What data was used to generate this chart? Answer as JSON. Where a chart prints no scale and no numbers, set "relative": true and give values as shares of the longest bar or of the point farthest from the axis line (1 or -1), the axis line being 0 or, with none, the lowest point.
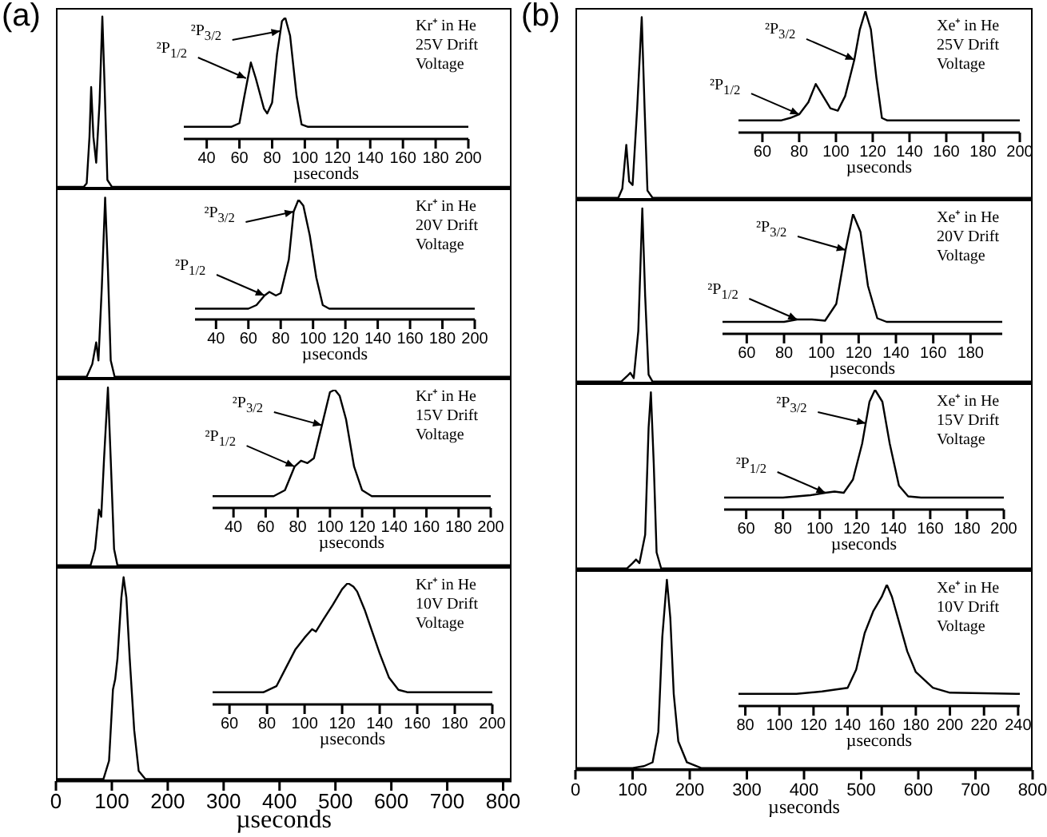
{
  "chart_data": [
    {
      "type": "line",
      "relative": true,
      "title": "(a)",
      "color": "#000000",
      "x": [
        0,
        50,
        55,
        60,
        63,
        67,
        72,
        78,
        83,
        87,
        92,
        100,
        815
      ],
      "values": [
        0.01,
        0.01,
        0.03,
        0.3,
        0.59,
        0.3,
        0.15,
        0.5,
        1,
        0.6,
        0.05,
        0.01,
        0.01
      ],
      "xlim": [
        0,
        815
      ],
      "tick_labels": false,
      "annotations": [
        "Kr⁺ in He\n25V Drift\nVoltage"
      ]
    },
    {
      "type": "line",
      "relative": true,
      "color": "#000000",
      "x": [
        26,
        55,
        60,
        63,
        67,
        70,
        75,
        77,
        80,
        83,
        86,
        88,
        91,
        95,
        98,
        102,
        200
      ],
      "values": [
        0.1,
        0.1,
        0.13,
        0.35,
        0.63,
        0.5,
        0.25,
        0.21,
        0.3,
        0.7,
        0.97,
        1,
        0.85,
        0.35,
        0.12,
        0.1,
        0.1
      ],
      "xlim": [
        26,
        200
      ],
      "xticks": [
        40,
        60,
        80,
        100,
        120,
        140,
        160,
        180,
        200
      ],
      "tick_labels": "x",
      "xlabel": "µseconds",
      "annotations": [
        {
          "text": "²P$_{1/2}$",
          "x": 64,
          "y": 0.5
        },
        {
          "text": "²P$_{3/2}$",
          "x": 85,
          "y": 0.89
        }
      ]
    },
    {
      "type": "line",
      "relative": true,
      "color": "#000000",
      "x": [
        0,
        55,
        65,
        72,
        76,
        82,
        88,
        93,
        98,
        105,
        815
      ],
      "values": [
        0.01,
        0.01,
        0.08,
        0.2,
        0.1,
        0.5,
        1,
        0.6,
        0.1,
        0.01,
        0.01
      ],
      "xlim": [
        0,
        815
      ],
      "tick_labels": false,
      "annotations": [
        "Kr⁺ in He\n20V Drift\nVoltage"
      ]
    },
    {
      "type": "line",
      "relative": true,
      "color": "#000000",
      "x": [
        27,
        60,
        65,
        70,
        73,
        77,
        80,
        85,
        88,
        91,
        94,
        98,
        102,
        106,
        110,
        200
      ],
      "values": [
        0.09,
        0.09,
        0.12,
        0.2,
        0.23,
        0.2,
        0.22,
        0.5,
        0.9,
        1,
        0.95,
        0.7,
        0.35,
        0.12,
        0.09,
        0.09
      ],
      "xlim": [
        27,
        200
      ],
      "xticks": [
        40,
        60,
        80,
        100,
        120,
        140,
        160,
        180,
        200
      ],
      "tick_labels": "x",
      "xlabel": "µseconds",
      "annotations": [
        {
          "text": "²P$_{1/2}$",
          "x": 70,
          "y": 0.2
        },
        {
          "text": "²P$_{3/2}$",
          "x": 88,
          "y": 0.9
        }
      ]
    },
    {
      "type": "line",
      "relative": true,
      "color": "#000000",
      "x": [
        0,
        62,
        70,
        77,
        81,
        86,
        93,
        98,
        104,
        110,
        815
      ],
      "values": [
        0.01,
        0.01,
        0.1,
        0.32,
        0.28,
        0.6,
        1,
        0.6,
        0.1,
        0.01,
        0.01
      ],
      "xlim": [
        0,
        815
      ],
      "tick_labels": false,
      "annotations": [
        "Kr⁺ in He\n15V Drift\nVoltage"
      ]
    },
    {
      "type": "line",
      "relative": true,
      "color": "#000000",
      "x": [
        27,
        65,
        72,
        78,
        82,
        86,
        90,
        95,
        100,
        103,
        106,
        110,
        115,
        120,
        126,
        200
      ],
      "values": [
        0.1,
        0.1,
        0.15,
        0.35,
        0.4,
        0.38,
        0.42,
        0.7,
        0.98,
        1,
        0.95,
        0.75,
        0.35,
        0.15,
        0.1,
        0.1
      ],
      "xlim": [
        27,
        200
      ],
      "xticks": [
        40,
        60,
        80,
        100,
        120,
        140,
        160,
        180,
        200
      ],
      "tick_labels": "x",
      "xlabel": "µseconds",
      "annotations": [
        {
          "text": "²P$_{1/2}$",
          "x": 78,
          "y": 0.35
        },
        {
          "text": "²P$_{3/2}$",
          "x": 95,
          "y": 0.7
        }
      ]
    },
    {
      "type": "line",
      "relative": true,
      "color": "#000000",
      "x": [
        0,
        85,
        95,
        102,
        106,
        110,
        117,
        121,
        126,
        132,
        140,
        148,
        160,
        815
      ],
      "values": [
        0.01,
        0.01,
        0.1,
        0.45,
        0.5,
        0.6,
        0.9,
        1,
        0.9,
        0.6,
        0.25,
        0.05,
        0.01,
        0.01
      ],
      "xlim": [
        0,
        815
      ],
      "xticks": [
        0,
        100,
        200,
        300,
        400,
        500,
        600,
        700,
        800
      ],
      "tick_labels": "x",
      "xlabel": "µseconds",
      "annotations": [
        "Kr⁺ in He\n10V Drift\nVoltage"
      ]
    },
    {
      "type": "line",
      "relative": true,
      "color": "#000000",
      "x": [
        51,
        78,
        85,
        90,
        95,
        100,
        104,
        106,
        110,
        115,
        120,
        123,
        126,
        128,
        132,
        136,
        140,
        145,
        150,
        155,
        200
      ],
      "values": [
        0.1,
        0.1,
        0.15,
        0.3,
        0.45,
        0.55,
        0.62,
        0.6,
        0.7,
        0.82,
        0.95,
        1,
        0.97,
        0.93,
        0.78,
        0.6,
        0.42,
        0.22,
        0.12,
        0.1,
        0.1
      ],
      "xlim": [
        51,
        200
      ],
      "xticks": [
        60,
        80,
        100,
        120,
        140,
        160,
        180,
        200
      ],
      "tick_labels": "x",
      "xlabel": "µseconds"
    },
    {
      "type": "line",
      "relative": true,
      "title": "(b)",
      "color": "#000000",
      "x": [
        0,
        75,
        82,
        89,
        94,
        100,
        108,
        116,
        121,
        126,
        135,
        800
      ],
      "values": [
        0.01,
        0.01,
        0.06,
        0.3,
        0.1,
        0.08,
        0.5,
        1,
        0.5,
        0.05,
        0.01,
        0.01
      ],
      "xlim": [
        0,
        800
      ],
      "tick_labels": false,
      "annotations": [
        "Xe⁺ in He\n25V Drift\nVoltage"
      ]
    },
    {
      "type": "line",
      "relative": true,
      "color": "#000000",
      "x": [
        47,
        70,
        75,
        80,
        85,
        89,
        93,
        97,
        101,
        105,
        110,
        113,
        116,
        119,
        122,
        125,
        128,
        200
      ],
      "values": [
        0.1,
        0.1,
        0.12,
        0.15,
        0.25,
        0.4,
        0.3,
        0.2,
        0.18,
        0.3,
        0.6,
        0.85,
        1,
        0.85,
        0.45,
        0.12,
        0.1,
        0.1
      ],
      "xlim": [
        47,
        200
      ],
      "xticks": [
        60,
        80,
        100,
        120,
        140,
        160,
        180,
        200
      ],
      "tick_labels": "x",
      "xlabel": "µseconds",
      "annotations": [
        {
          "text": "²P$_{1/2}$",
          "x": 80,
          "y": 0.15
        },
        {
          "text": "²P$_{3/2}$",
          "x": 110,
          "y": 0.6
        }
      ]
    },
    {
      "type": "line",
      "relative": true,
      "color": "#000000",
      "x": [
        0,
        80,
        90,
        96,
        102,
        110,
        117,
        122,
        128,
        135,
        800
      ],
      "values": [
        0.01,
        0.01,
        0.04,
        0.06,
        0.03,
        0.3,
        1,
        0.5,
        0.05,
        0.01,
        0.01
      ],
      "xlim": [
        0,
        800
      ],
      "tick_labels": false,
      "annotations": [
        "Xe⁺ in He\n20V Drift\nVoltage"
      ]
    },
    {
      "type": "line",
      "relative": true,
      "color": "#000000",
      "x": [
        47,
        80,
        87,
        95,
        102,
        108,
        113,
        117,
        121,
        125,
        130,
        135,
        197
      ],
      "values": [
        0.1,
        0.1,
        0.12,
        0.12,
        0.11,
        0.25,
        0.7,
        1,
        0.85,
        0.4,
        0.13,
        0.1,
        0.1
      ],
      "xlim": [
        47,
        197
      ],
      "xticks": [
        60,
        80,
        100,
        120,
        140,
        160,
        180
      ],
      "tick_labels": "x",
      "xlabel": "µseconds",
      "annotations": [
        {
          "text": "²P$_{1/2}$",
          "x": 87,
          "y": 0.12
        },
        {
          "text": "²P$_{3/2}$",
          "x": 113,
          "y": 0.7
        }
      ]
    },
    {
      "type": "line",
      "relative": true,
      "color": "#000000",
      "x": [
        0,
        90,
        100,
        106,
        112,
        122,
        128,
        132,
        137,
        142,
        150,
        800
      ],
      "values": [
        0.01,
        0.01,
        0.04,
        0.06,
        0.04,
        0.2,
        0.8,
        1,
        0.6,
        0.1,
        0.01,
        0.01
      ],
      "xlim": [
        0,
        800
      ],
      "tick_labels": false,
      "annotations": [
        "Xe⁺ in He\n15V Drift\nVoltage"
      ]
    },
    {
      "type": "line",
      "relative": true,
      "color": "#000000",
      "x": [
        48,
        80,
        95,
        103,
        108,
        113,
        118,
        123,
        127,
        130,
        134,
        138,
        143,
        148,
        155,
        200
      ],
      "values": [
        0.1,
        0.1,
        0.12,
        0.14,
        0.15,
        0.14,
        0.25,
        0.55,
        0.9,
        1,
        0.9,
        0.55,
        0.2,
        0.11,
        0.1,
        0.1
      ],
      "xlim": [
        48,
        200
      ],
      "xticks": [
        60,
        80,
        100,
        120,
        140,
        160,
        180,
        200
      ],
      "tick_labels": "x",
      "xlabel": "µseconds",
      "annotations": [
        {
          "text": "²P$_{1/2}$",
          "x": 103,
          "y": 0.14
        },
        {
          "text": "²P$_{3/2}$",
          "x": 125,
          "y": 0.72
        }
      ]
    },
    {
      "type": "line",
      "relative": true,
      "color": "#000000",
      "x": [
        0,
        100,
        120,
        135,
        145,
        152,
        160,
        166,
        172,
        180,
        195,
        220,
        800
      ],
      "values": [
        0.01,
        0.01,
        0.02,
        0.04,
        0.2,
        0.7,
        1,
        0.8,
        0.4,
        0.15,
        0.04,
        0.01,
        0.01
      ],
      "xlim": [
        0,
        800
      ],
      "xticks": [
        0,
        100,
        200,
        300,
        400,
        500,
        600,
        700,
        800
      ],
      "tick_labels": "x",
      "xlabel": "µseconds",
      "annotations": [
        "Xe⁺ in He\n10V Drift\nVoltage"
      ]
    },
    {
      "type": "line",
      "relative": true,
      "color": "#000000",
      "x": [
        76,
        110,
        125,
        140,
        145,
        150,
        155,
        160,
        163,
        166,
        170,
        175,
        180,
        190,
        200,
        241
      ],
      "values": [
        0.1,
        0.1,
        0.12,
        0.15,
        0.3,
        0.6,
        0.78,
        0.9,
        1,
        0.9,
        0.7,
        0.45,
        0.28,
        0.15,
        0.11,
        0.1
      ],
      "xlim": [
        76,
        241
      ],
      "xticks": [
        80,
        100,
        120,
        140,
        160,
        180,
        200,
        220,
        240
      ],
      "tick_labels": "x",
      "xlabel": "µseconds"
    }
  ]
}
